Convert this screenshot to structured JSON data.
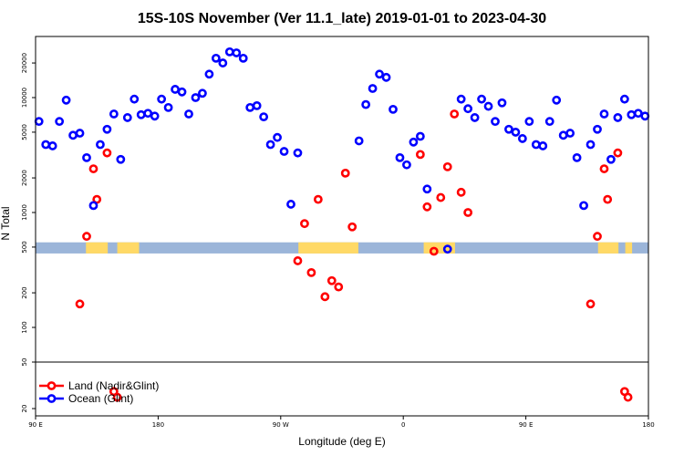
{
  "chart_data": {
    "type": "scatter",
    "title": "15S-10S November (Ver 11.1_late)   2019-01-01 to 2023-04-30",
    "xlabel": "Longitude (deg E)",
    "ylabel": "N Total",
    "xscale": "longitude (90E to 180, spanning 450 degrees)",
    "yscale": "log",
    "xlim": [
      90,
      540
    ],
    "ylim": [
      19.5,
      38000
    ],
    "x_ticks": [
      {
        "value": 90,
        "label": "90 E"
      },
      {
        "value": 180,
        "label": "180"
      },
      {
        "value": 270,
        "label": "90 W"
      },
      {
        "value": 360,
        "label": "0"
      },
      {
        "value": 450,
        "label": "90 E"
      },
      {
        "value": 540,
        "label": "180"
      }
    ],
    "y_ticks_main": [
      {
        "value": 100,
        "label": "100"
      },
      {
        "value": 200,
        "label": "200"
      },
      {
        "value": 500,
        "label": "500"
      },
      {
        "value": 1000,
        "label": "1000"
      },
      {
        "value": 2000,
        "label": "2000"
      },
      {
        "value": 5000,
        "label": "5000"
      },
      {
        "value": 10000,
        "label": "10000"
      },
      {
        "value": 20000,
        "label": "20000"
      }
    ],
    "y_ticks_lower": [
      {
        "value": 20,
        "label": "20"
      },
      {
        "value": 50,
        "label": "50"
      }
    ],
    "legend": {
      "placement": "bottom-left",
      "entries": [
        {
          "label": "Land (Nadir&Glint)",
          "color": "#ff0000"
        },
        {
          "label": "Ocean (Glint)",
          "color": "#0000ff"
        }
      ]
    },
    "band": {
      "y_low": 440,
      "y_high": 550,
      "color": "#9bb5d9"
    },
    "land_fill_color": "#ffd966",
    "land_regions": [
      [
        127,
        143
      ],
      [
        150,
        166
      ],
      [
        283,
        327
      ],
      [
        375,
        398
      ],
      [
        503,
        518
      ],
      [
        523,
        528
      ]
    ],
    "series": [
      {
        "name": "Land (Nadir&Glint)",
        "color": "#ff0000",
        "points": [
          [
            122.5,
            160
          ],
          [
            127.5,
            620
          ],
          [
            132.5,
            2400
          ],
          [
            135,
            1300
          ],
          [
            142.5,
            3300
          ],
          [
            147.5,
            28
          ],
          [
            150,
            25
          ],
          [
            282.5,
            380
          ],
          [
            287.5,
            800
          ],
          [
            292.5,
            300
          ],
          [
            297.5,
            1300
          ],
          [
            302.5,
            185
          ],
          [
            307.5,
            255
          ],
          [
            312.5,
            225
          ],
          [
            317.5,
            2200
          ],
          [
            322.5,
            750
          ],
          [
            372.5,
            3200
          ],
          [
            377.5,
            1120
          ],
          [
            382.5,
            460
          ],
          [
            387.5,
            1350
          ],
          [
            392.5,
            2500
          ],
          [
            397.5,
            7200
          ],
          [
            402.5,
            1500
          ],
          [
            407.5,
            1000
          ],
          [
            497.5,
            160
          ],
          [
            502.5,
            620
          ],
          [
            507.5,
            2400
          ],
          [
            510,
            1300
          ],
          [
            517.5,
            3300
          ],
          [
            522.5,
            28
          ],
          [
            525,
            25
          ]
        ]
      },
      {
        "name": "Ocean (Glint)",
        "color": "#0000ff",
        "points": [
          [
            92.5,
            6200
          ],
          [
            97.5,
            3900
          ],
          [
            102.5,
            3800
          ],
          [
            107.5,
            6200
          ],
          [
            112.5,
            9500
          ],
          [
            117.5,
            4700
          ],
          [
            122.5,
            4900
          ],
          [
            127.5,
            3000
          ],
          [
            132.5,
            1150
          ],
          [
            137.5,
            3900
          ],
          [
            142.5,
            5300
          ],
          [
            147.5,
            7200
          ],
          [
            152.5,
            2900
          ],
          [
            157.5,
            6700
          ],
          [
            162.5,
            9700
          ],
          [
            167.5,
            7100
          ],
          [
            172.5,
            7300
          ],
          [
            177.5,
            6900
          ],
          [
            182.5,
            9700
          ],
          [
            187.5,
            8200
          ],
          [
            192.5,
            11800
          ],
          [
            197.5,
            11200
          ],
          [
            202.5,
            7200
          ],
          [
            207.5,
            10000
          ],
          [
            212.5,
            10900
          ],
          [
            217.5,
            16000
          ],
          [
            222.5,
            22000
          ],
          [
            227.5,
            20000
          ],
          [
            232.5,
            25000
          ],
          [
            237.5,
            24500
          ],
          [
            242.5,
            22000
          ],
          [
            247.5,
            8200
          ],
          [
            252.5,
            8500
          ],
          [
            257.5,
            6800
          ],
          [
            262.5,
            3900
          ],
          [
            267.5,
            4500
          ],
          [
            272.5,
            3400
          ],
          [
            277.5,
            1180
          ],
          [
            282.5,
            3300
          ],
          [
            327.5,
            4200
          ],
          [
            332.5,
            8700
          ],
          [
            337.5,
            12000
          ],
          [
            342.5,
            16000
          ],
          [
            347.5,
            15000
          ],
          [
            352.5,
            7900
          ],
          [
            357.5,
            3000
          ],
          [
            362.5,
            2600
          ],
          [
            367.5,
            4100
          ],
          [
            372.5,
            4600
          ],
          [
            377.5,
            1600
          ],
          [
            392.5,
            480
          ],
          [
            402.5,
            9700
          ],
          [
            407.5,
            8000
          ],
          [
            412.5,
            6700
          ],
          [
            417.5,
            9700
          ],
          [
            422.5,
            8400
          ],
          [
            427.5,
            6200
          ],
          [
            432.5,
            9000
          ],
          [
            437.5,
            5300
          ],
          [
            442.5,
            5000
          ],
          [
            447.5,
            4400
          ],
          [
            452.5,
            6200
          ],
          [
            457.5,
            3900
          ],
          [
            462.5,
            3800
          ],
          [
            467.5,
            6200
          ],
          [
            472.5,
            9500
          ],
          [
            477.5,
            4700
          ],
          [
            482.5,
            4900
          ],
          [
            487.5,
            3000
          ],
          [
            492.5,
            1150
          ],
          [
            497.5,
            3900
          ],
          [
            502.5,
            5300
          ],
          [
            507.5,
            7200
          ],
          [
            512.5,
            2900
          ],
          [
            517.5,
            6700
          ],
          [
            522.5,
            9700
          ],
          [
            527.5,
            7100
          ],
          [
            532.5,
            7300
          ],
          [
            537.5,
            6900
          ]
        ]
      }
    ]
  }
}
